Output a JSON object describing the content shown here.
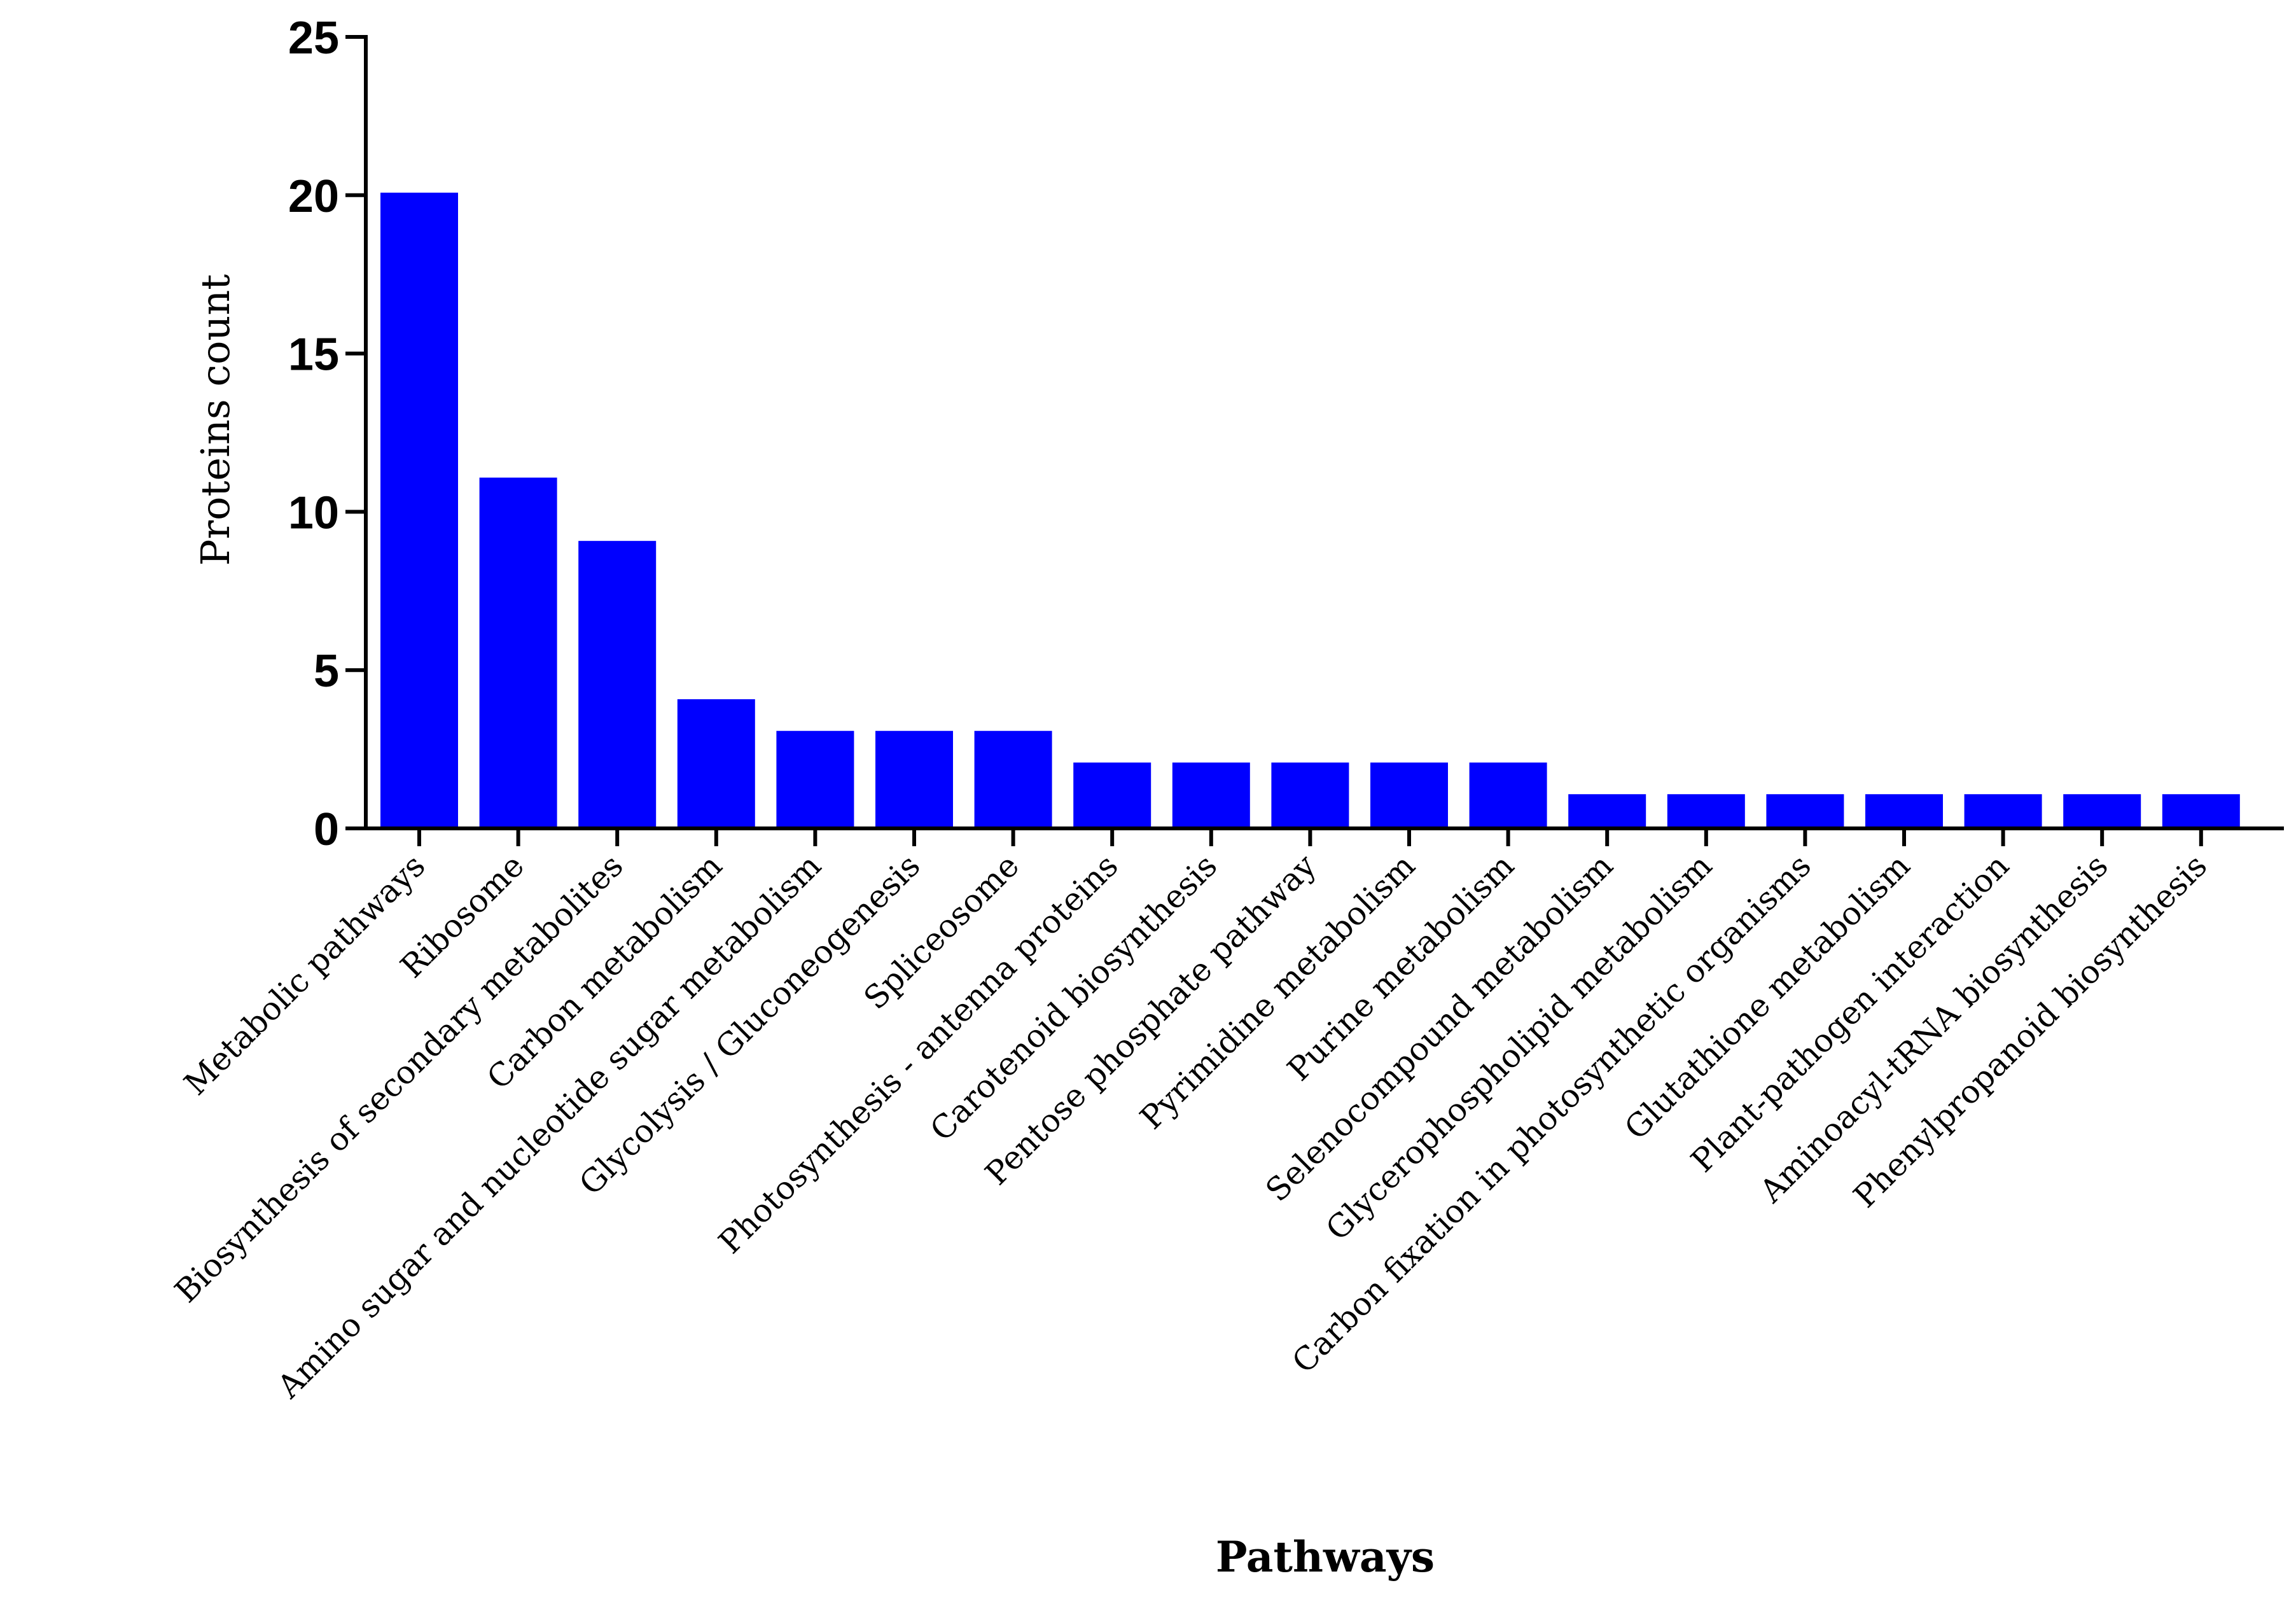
{
  "chart_data": {
    "type": "bar",
    "title": "",
    "xlabel": "Pathways",
    "ylabel": "Proteins count",
    "ylim": [
      0,
      25
    ],
    "yticks": [
      0,
      5,
      10,
      15,
      20,
      25
    ],
    "grid": false,
    "legend": "none",
    "bar_color": "#0000ff",
    "categories": [
      "Metabolic pathways",
      "Ribosome",
      "Biosynthesis of secondary metabolites",
      "Carbon metabolism",
      "Amino sugar and nucleotide sugar metabolism",
      "Glycolysis / Gluconeogenesis",
      "Spliceosome",
      "Photosynthesis - antenna proteins",
      "Carotenoid biosynthesis",
      "Pentose phosphate pathway",
      "Pyrimidine metabolism",
      "Purine metabolism",
      "Selenocompound metabolism",
      "Glycerophospholipid metabolism",
      "Carbon fixation in photosynthetic organisms",
      "Glutathione metabolism",
      "Plant-pathogen interaction",
      "Aminoacyl-tRNA biosynthesis",
      "Phenylpropanoid biosynthesis"
    ],
    "values": [
      20,
      11,
      9,
      4,
      3,
      3,
      3,
      2,
      2,
      2,
      2,
      2,
      1,
      1,
      1,
      1,
      1,
      1,
      1
    ]
  }
}
